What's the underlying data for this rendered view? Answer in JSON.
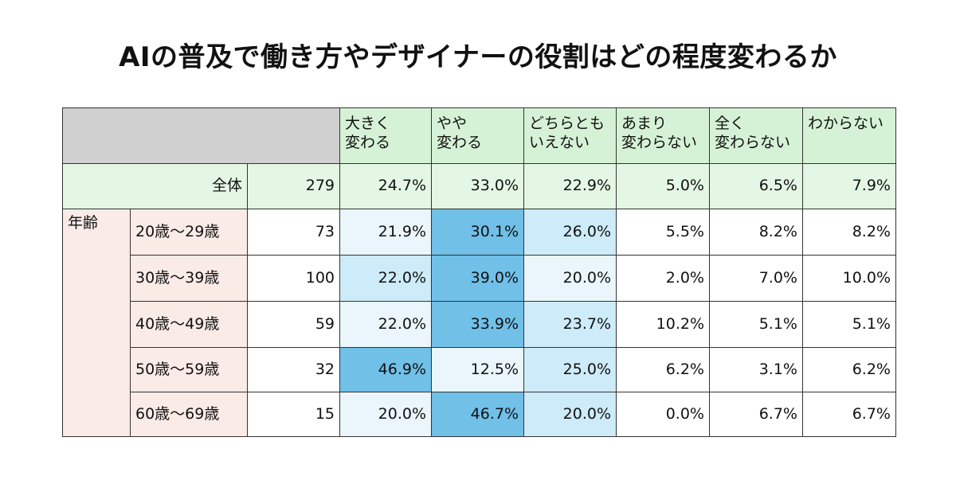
{
  "title": "AIの普及で働き方やデザイナーの役割はどの程度変わるか",
  "table": {
    "header": [
      "大きく\n変わる",
      "やや\n変わる",
      "どちらとも\nいえない",
      "あまり\n変わらない",
      "全く\n変わらない",
      "わからない"
    ],
    "total": {
      "label": "全体",
      "n": "279",
      "values": [
        "24.7%",
        "33.0%",
        "22.9%",
        "5.0%",
        "6.5%",
        "7.9%"
      ]
    },
    "group_label": "年齢",
    "rows": [
      {
        "label": "20歳～29歳",
        "n": "73",
        "values": [
          "21.9%",
          "30.1%",
          "26.0%",
          "5.5%",
          "8.2%",
          "8.2%"
        ]
      },
      {
        "label": "30歳～39歳",
        "n": "100",
        "values": [
          "22.0%",
          "39.0%",
          "20.0%",
          "2.0%",
          "7.0%",
          "10.0%"
        ]
      },
      {
        "label": "40歳～49歳",
        "n": "59",
        "values": [
          "22.0%",
          "33.9%",
          "23.7%",
          "10.2%",
          "5.1%",
          "5.1%"
        ]
      },
      {
        "label": "50歳～59歳",
        "n": "32",
        "values": [
          "46.9%",
          "12.5%",
          "25.0%",
          "6.2%",
          "3.1%",
          "6.2%"
        ]
      },
      {
        "label": "60歳～69歳",
        "n": "15",
        "values": [
          "20.0%",
          "46.7%",
          "20.0%",
          "0.0%",
          "6.7%",
          "6.7%"
        ]
      }
    ]
  }
}
